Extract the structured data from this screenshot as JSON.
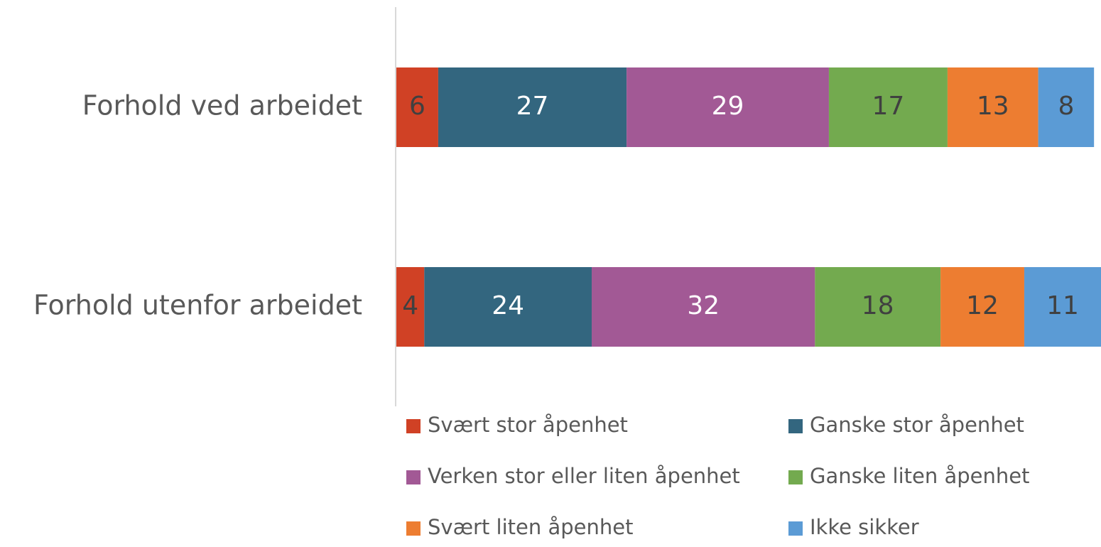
{
  "chart_data": {
    "type": "stacked_barh",
    "categories": [
      "Forhold ved arbeidet",
      "Forhold utenfor arbeidet"
    ],
    "series": [
      {
        "name": "Svært stor åpenhet",
        "color": "#d04125",
        "label_color": "#404040",
        "values": [
          6,
          4
        ]
      },
      {
        "name": "Ganske stor åpenhet",
        "color": "#33667f",
        "label_color": "#ffffff",
        "values": [
          27,
          24
        ]
      },
      {
        "name": "Verken stor eller liten åpenhet",
        "color": "#a25995",
        "label_color": "#ffffff",
        "values": [
          29,
          32
        ]
      },
      {
        "name": "Ganske liten åpenhet",
        "color": "#73aa4f",
        "label_color": "#404040",
        "values": [
          17,
          18
        ]
      },
      {
        "name": "Svært liten åpenhet",
        "color": "#ed7d31",
        "label_color": "#404040",
        "values": [
          13,
          12
        ]
      },
      {
        "name": "Ikke sikker",
        "color": "#5b9bd5",
        "label_color": "#404040",
        "values": [
          8,
          11
        ]
      }
    ],
    "xlim": [
      0,
      101
    ],
    "legend": "bottom"
  }
}
